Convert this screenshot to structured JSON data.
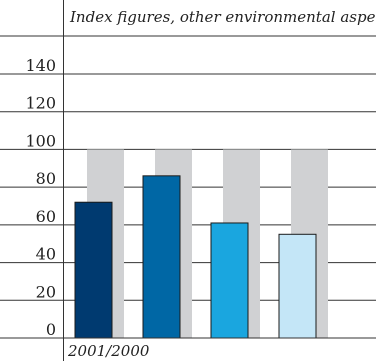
{
  "chart_data": {
    "type": "bar",
    "title": "Index figures, other environmental aspects",
    "footer": "2001/2000",
    "xlabel": "",
    "ylabel": "",
    "ylim": [
      0,
      160
    ],
    "ytick_labels": [
      "0",
      "20",
      "40",
      "60",
      "80",
      "100",
      "120",
      "140"
    ],
    "categories": [
      "",
      "",
      "",
      ""
    ],
    "series": [
      {
        "values": [
          100,
          100,
          100,
          100
        ],
        "color": "#d0d1d3"
      },
      {
        "values": [
          72,
          86,
          61,
          55
        ],
        "colors": [
          "#003a70",
          "#0067a5",
          "#1aa6df",
          "#c4e6f7"
        ]
      }
    ],
    "grid": true,
    "legend": "none"
  }
}
